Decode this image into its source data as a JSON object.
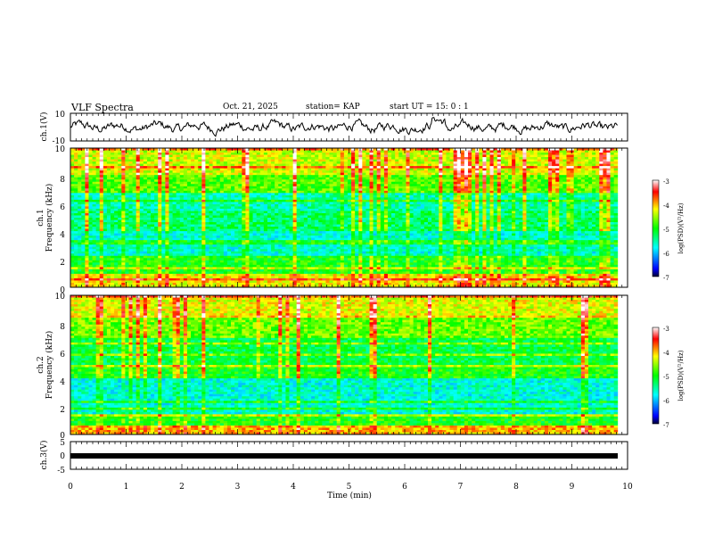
{
  "header": {
    "title": "VLF Spectra",
    "date": "Oct. 21, 2025",
    "station": "station= KAP",
    "start": "start  UT  =   15: 0  : 1"
  },
  "chart_data": [
    {
      "type": "line",
      "ylabel": "ch.1(V)",
      "ylim": [
        -10,
        10
      ],
      "yticks": [
        "10",
        "-10"
      ],
      "xlim": [
        0,
        10
      ]
    },
    {
      "type": "heatmap",
      "ylabel": "Frequency (kHz)",
      "channel": "ch.1",
      "ylim": [
        0,
        10
      ],
      "yticks": [
        "0",
        "2",
        "4",
        "6",
        "8",
        "10"
      ],
      "colorbar": {
        "label": "log(PSD)(V²/Hz)",
        "range": [
          -7,
          -3
        ],
        "ticks": [
          "-3",
          "-4",
          "-5",
          "-6",
          "-7"
        ]
      }
    },
    {
      "type": "heatmap",
      "ylabel": "Frequency (kHz)",
      "channel": "ch.2",
      "ylim": [
        0,
        10
      ],
      "yticks": [
        "0",
        "2",
        "4",
        "6",
        "8",
        "10"
      ],
      "colorbar": {
        "label": "log(PSD)(V²/Hz)",
        "range": [
          -7,
          -3
        ],
        "ticks": [
          "-3",
          "-4",
          "-5",
          "-6",
          "-7"
        ]
      }
    },
    {
      "type": "line",
      "ylabel": "ch.3(V)",
      "ylim": [
        -5,
        5
      ],
      "yticks": [
        "5",
        "0",
        "-5"
      ],
      "xlim": [
        0,
        10
      ],
      "xlabel": "Time (min)",
      "xticks": [
        "0",
        "1",
        "2",
        "3",
        "4",
        "5",
        "6",
        "7",
        "8",
        "9",
        "10"
      ]
    }
  ]
}
